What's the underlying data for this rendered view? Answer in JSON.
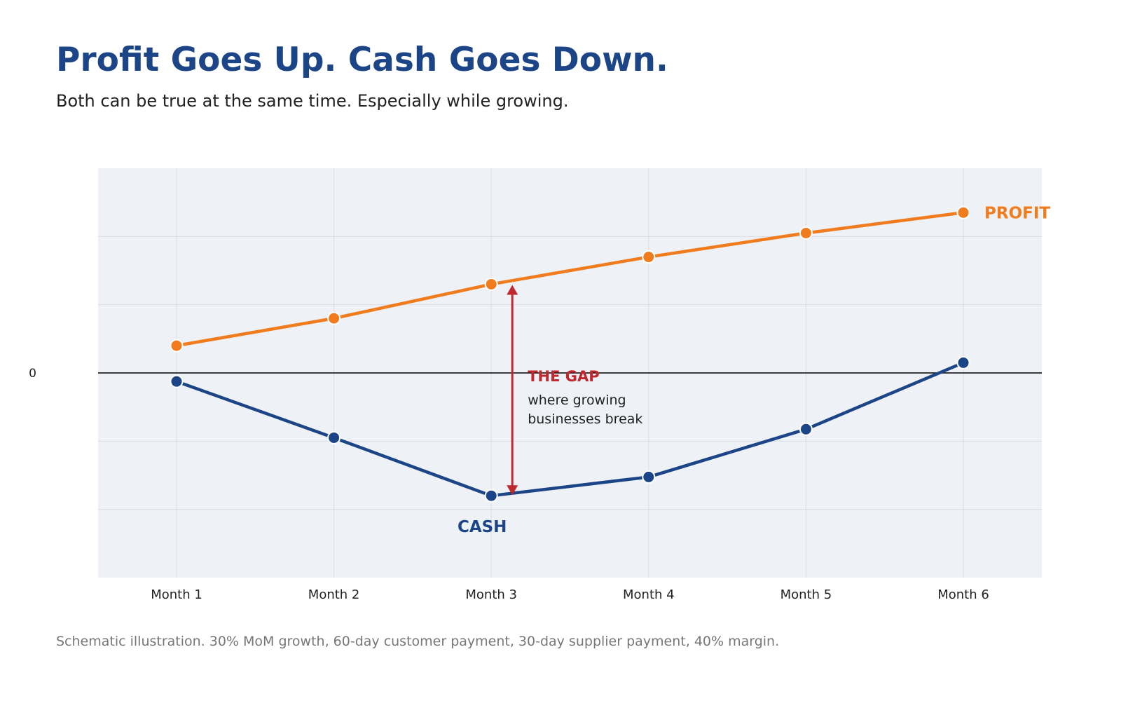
{
  "header": {
    "title": "Profit Goes Up. Cash Goes Down.",
    "subtitle": "Both can be true at the same time. Especially while growing."
  },
  "footnote": "Schematic illustration. 30% MoM growth, 60-day customer payment, 30-day supplier payment, 40% margin.",
  "colors": {
    "profit": "#f07c1e",
    "cash": "#1c4587",
    "gap": "#c0282f",
    "plot_background": "#eef2f7",
    "zero_line": "#000000",
    "grid": "#d9dde3"
  },
  "chart_data": {
    "type": "line",
    "categories": [
      "Month 1",
      "Month 2",
      "Month 3",
      "Month 4",
      "Month 5",
      "Month 6"
    ],
    "series": [
      {
        "name": "PROFIT",
        "values": [
          0.8,
          1.6,
          2.6,
          3.4,
          4.1,
          4.7
        ]
      },
      {
        "name": "CASH",
        "values": [
          -0.25,
          -1.9,
          -3.6,
          -3.05,
          -1.65,
          0.3
        ]
      }
    ],
    "ylim": [
      -6,
      6
    ],
    "y_tick_labels": [
      {
        "value": 0,
        "label": "0"
      }
    ],
    "y_gridlines": [
      -4,
      -2,
      0,
      2,
      4
    ],
    "grid": true,
    "zero_line": true,
    "xlabel": "",
    "ylabel": "",
    "annotation": {
      "category": "Month 3",
      "from_series": "CASH",
      "to_series": "PROFIT",
      "title": "THE GAP",
      "text_lines": [
        "where growing",
        "businesses break"
      ]
    }
  }
}
